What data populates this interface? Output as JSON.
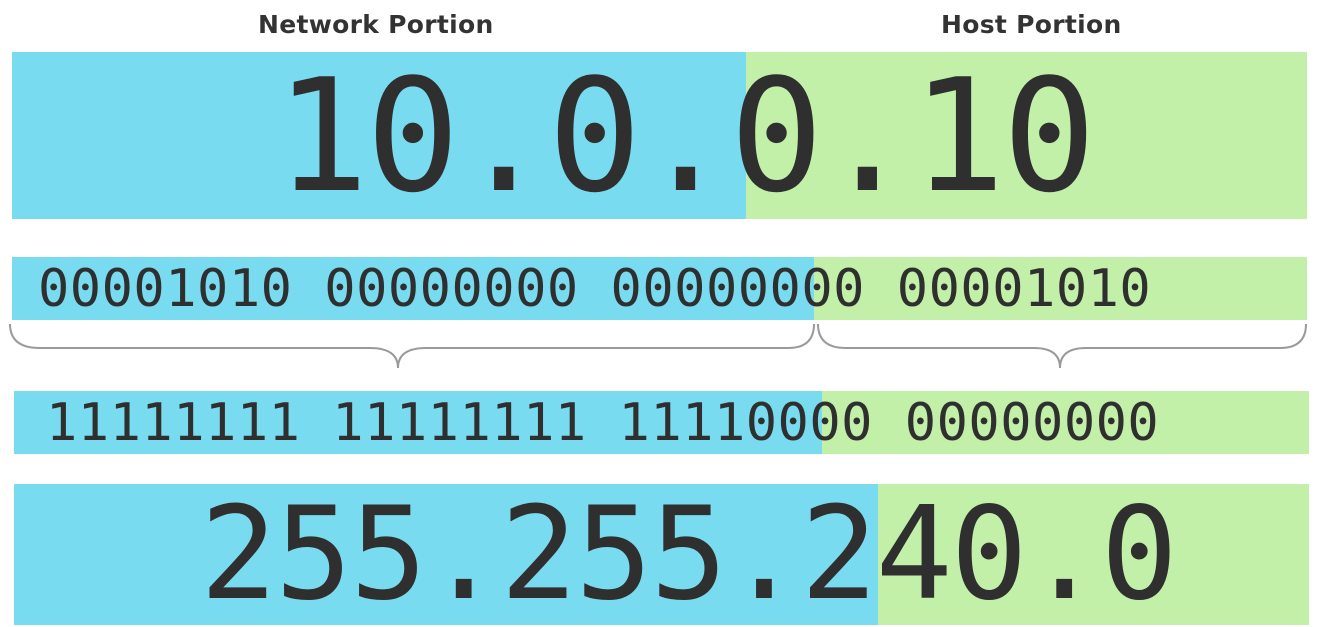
{
  "headings": {
    "network": "Network Portion",
    "host": "Host Portion"
  },
  "ip_address": "10.0.0.10",
  "ip_binary": "00001010 00000000 00000000 00001010",
  "mask_binary": "11111111 11111111 11110000 00000000",
  "subnet_mask": "255.255.240.0",
  "colors": {
    "network": "#79dbef",
    "host": "#c2f0a8",
    "text": "#2f2f2f",
    "brace": "#9a9a9a"
  },
  "network_bits": 20,
  "total_bits": 32
}
